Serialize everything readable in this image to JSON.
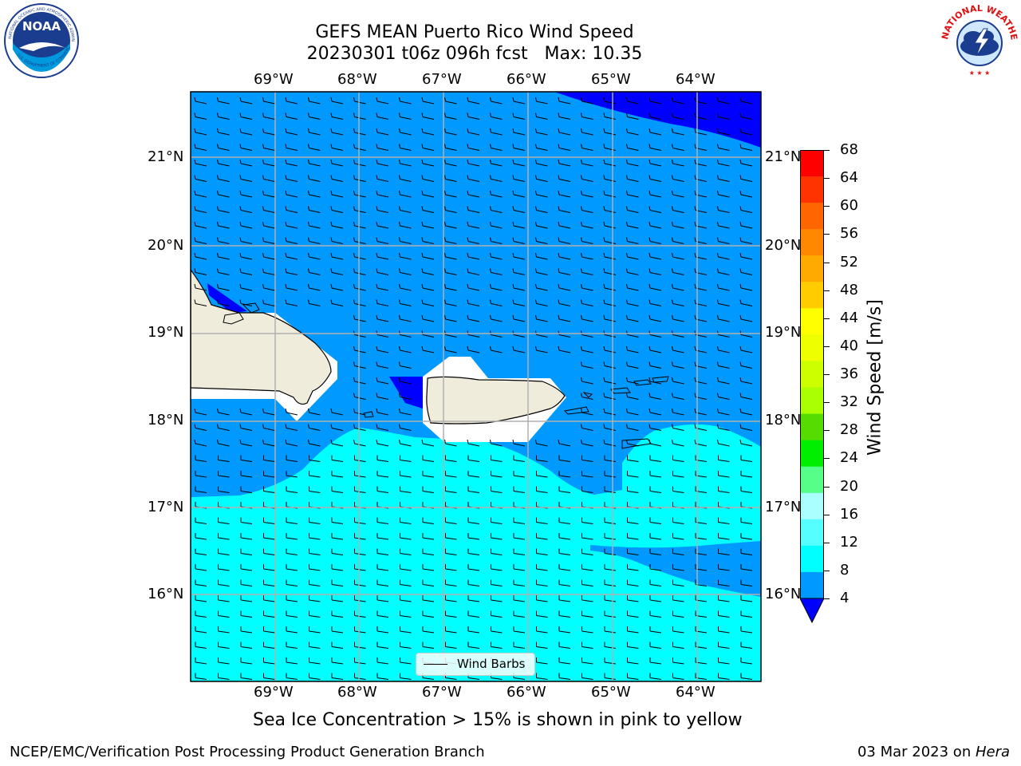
{
  "header": {
    "title_line1": "GEFS MEAN Puerto Rico Wind Speed",
    "title_line2": "20230301 t06z 096h fcst   Max: 10.35"
  },
  "logos": {
    "left": "NOAA",
    "right": "NATIONAL WEATHER SERVICE",
    "left_ring_text": "NATIONAL OCEANIC AND ATMOSPHERIC ADMINISTRATION",
    "left_ring_text_bottom": "U.S. DEPARTMENT OF COMMERCE"
  },
  "map": {
    "lon_labels": [
      "69°W",
      "68°W",
      "67°W",
      "66°W",
      "65°W",
      "64°W"
    ],
    "lat_labels": [
      "21°N",
      "20°N",
      "19°N",
      "18°N",
      "17°N",
      "16°N"
    ],
    "legend_label": "Wind Barbs",
    "colors": {
      "ocean_dark": "#0099ff",
      "ocean_cyan": "#00ffff",
      "low_blue": "#0000ff",
      "land": "#efecdc",
      "grid": "#b0b0b0"
    }
  },
  "colorbar": {
    "label": "Wind Speed [m/s]",
    "ticks": [
      "68",
      "64",
      "60",
      "56",
      "52",
      "48",
      "44",
      "40",
      "36",
      "32",
      "28",
      "24",
      "20",
      "16",
      "12",
      "8",
      "4"
    ],
    "colors": [
      "#ff0000",
      "#ff3300",
      "#ff6600",
      "#ff8800",
      "#ffaa00",
      "#ffcc00",
      "#ffff00",
      "#eeff00",
      "#ccff00",
      "#aaff00",
      "#55dd00",
      "#00ee00",
      "#55ff88",
      "#aaffff",
      "#55ffff",
      "#00ffff",
      "#0099ff"
    ],
    "extend_color": "#0000ff"
  },
  "notes": {
    "sea_ice": "Sea Ice Concentration > 15% is shown in pink to yellow",
    "credit": "NCEP/EMC/Verification Post Processing Product Generation Branch",
    "date": "03 Mar 2023 on ",
    "host": "Hera"
  }
}
